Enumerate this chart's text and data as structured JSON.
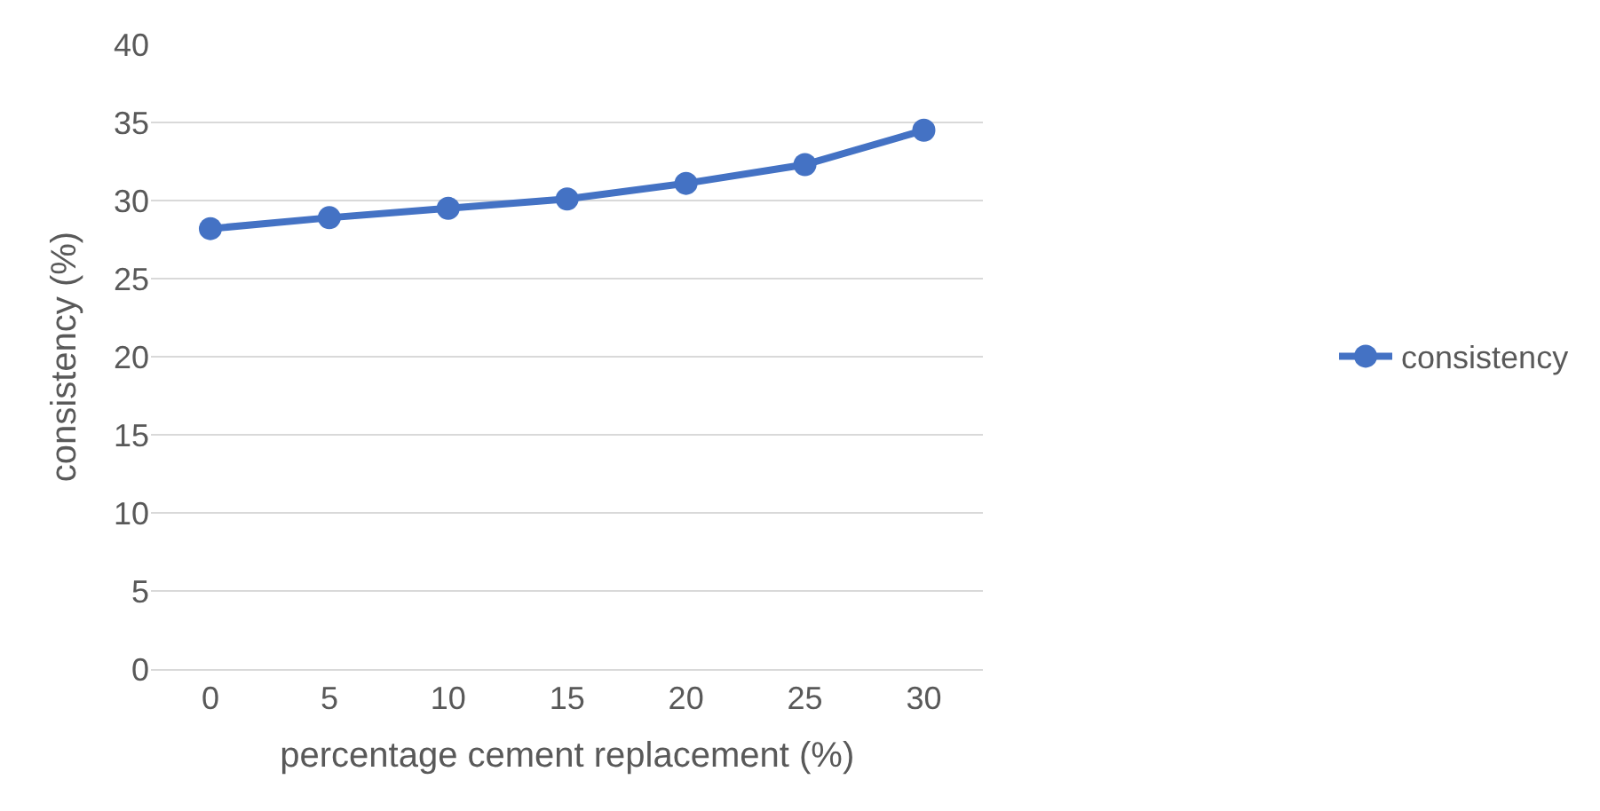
{
  "chart_data": {
    "type": "line",
    "xlabel": "percentage cement replacement (%)",
    "ylabel": "consistency (%)",
    "categories": [
      "0",
      "5",
      "10",
      "15",
      "20",
      "25",
      "30"
    ],
    "series": [
      {
        "name": "consistency",
        "color": "#4472c4",
        "values": [
          28.2,
          28.9,
          29.5,
          30.1,
          31.1,
          32.3,
          34.5
        ]
      }
    ],
    "ylim": [
      0,
      40
    ],
    "yticks": [
      0,
      5,
      10,
      15,
      20,
      25,
      30,
      35,
      40
    ],
    "grid": "y",
    "legend": "right",
    "marker": "circle",
    "line_style": "solid"
  }
}
